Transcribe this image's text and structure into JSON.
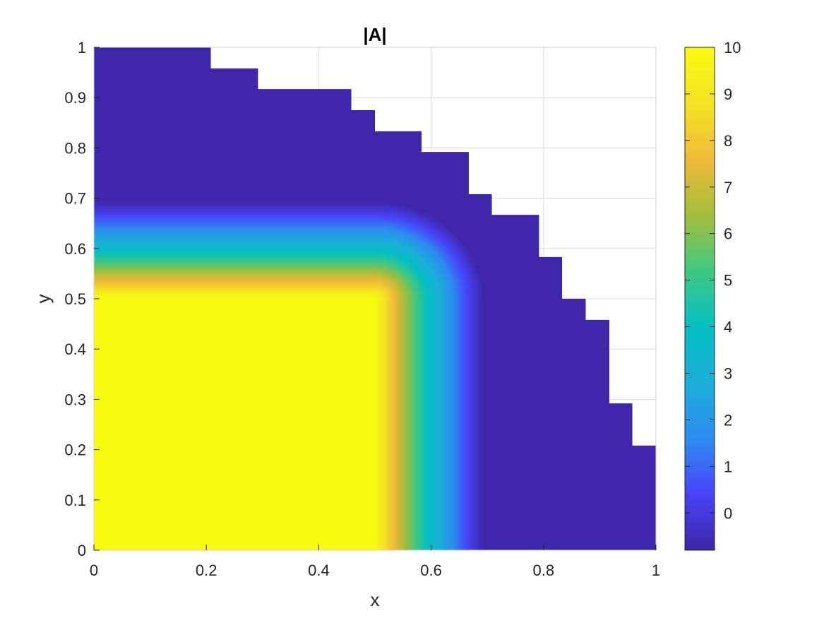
{
  "chart_data": {
    "type": "heatmap",
    "title": "|A|",
    "xlabel": "x",
    "ylabel": "y",
    "xlim": [
      0,
      1
    ],
    "ylim": [
      0,
      1
    ],
    "grid": true,
    "xticks": [
      0,
      0.2,
      0.4,
      0.6,
      0.8,
      1
    ],
    "xtick_labels": [
      "0",
      "0.2",
      "0.4",
      "0.6",
      "0.8",
      "1"
    ],
    "yticks": [
      0,
      0.1,
      0.2,
      0.3,
      0.4,
      0.5,
      0.6,
      0.7,
      0.8,
      0.9,
      1
    ],
    "ytick_labels": [
      "0",
      "0.1",
      "0.2",
      "0.3",
      "0.4",
      "0.5",
      "0.6",
      "0.7",
      "0.8",
      "0.9",
      "1"
    ],
    "colorbar": {
      "range": [
        -0.8,
        10
      ],
      "ticks": [
        0,
        1,
        2,
        3,
        4,
        5,
        6,
        7,
        8,
        9,
        10
      ],
      "tick_labels": [
        "0",
        "1",
        "2",
        "3",
        "4",
        "5",
        "6",
        "7",
        "8",
        "9",
        "10"
      ],
      "colormap": "parula",
      "colors": [
        "#3e26a8",
        "#4743f8",
        "#2d8cf0",
        "#1aafd8",
        "#04bfc3",
        "#40c882",
        "#a5be3b",
        "#f0ba38",
        "#f5e324",
        "#f9fb0e"
      ]
    },
    "field_description": "|A| equals 10 inside the square region x<=0.5, y<=0.5 and decays outward with distance from that square, dropping to about -0.8 at the outer boundary",
    "domain_boundary": [
      [
        0,
        1
      ],
      [
        0.208,
        1
      ],
      [
        0.208,
        0.958
      ],
      [
        0.292,
        0.958
      ],
      [
        0.292,
        0.917
      ],
      [
        0.458,
        0.917
      ],
      [
        0.458,
        0.875
      ],
      [
        0.5,
        0.875
      ],
      [
        0.5,
        0.833
      ],
      [
        0.583,
        0.833
      ],
      [
        0.583,
        0.792
      ],
      [
        0.667,
        0.792
      ],
      [
        0.667,
        0.708
      ],
      [
        0.708,
        0.708
      ],
      [
        0.708,
        0.667
      ],
      [
        0.792,
        0.667
      ],
      [
        0.792,
        0.583
      ],
      [
        0.833,
        0.583
      ],
      [
        0.833,
        0.5
      ],
      [
        0.875,
        0.5
      ],
      [
        0.875,
        0.458
      ],
      [
        0.917,
        0.458
      ],
      [
        0.917,
        0.292
      ],
      [
        0.958,
        0.292
      ],
      [
        0.958,
        0.208
      ],
      [
        1,
        0.208
      ],
      [
        1,
        0
      ],
      [
        0,
        0
      ]
    ]
  }
}
